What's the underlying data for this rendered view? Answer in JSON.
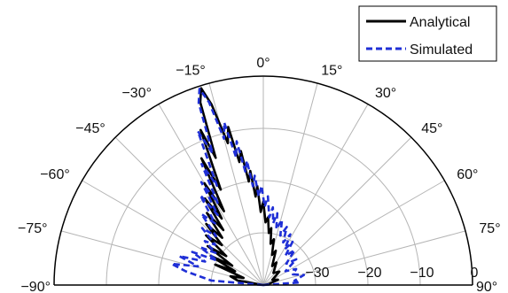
{
  "chart_data": {
    "type": "polar-line",
    "title": "",
    "angle_unit": "degrees",
    "angle_range": [
      -90,
      90
    ],
    "angle_ticks": [
      -90,
      -75,
      -60,
      -45,
      -30,
      -15,
      0,
      15,
      30,
      45,
      60,
      75,
      90
    ],
    "angle_tick_labels": [
      "−90°",
      "−75°",
      "−60°",
      "−45°",
      "−30°",
      "−15°",
      "0°",
      "15°",
      "30°",
      "45°",
      "60°",
      "75°",
      "90°"
    ],
    "r_unit": "dB",
    "r_range": [
      -40,
      0
    ],
    "r_ticks": [
      -30,
      -20,
      -10,
      0
    ],
    "r_tick_labels": [
      "−30",
      "−20",
      "−10",
      "0"
    ],
    "grid": true,
    "legend_position": "top-right",
    "series": [
      {
        "name": "Analytical",
        "color": "#000000",
        "line_style": "solid",
        "points": [
          [
            -90,
            -40
          ],
          [
            -80,
            -35
          ],
          [
            -75,
            -33.5
          ],
          [
            -70,
            -36
          ],
          [
            -67,
            -30
          ],
          [
            -64,
            -34
          ],
          [
            -61,
            -28.5
          ],
          [
            -58,
            -33
          ],
          [
            -55,
            -27
          ],
          [
            -52,
            -31
          ],
          [
            -49,
            -25.5
          ],
          [
            -46,
            -29
          ],
          [
            -43,
            -24
          ],
          [
            -41,
            -28
          ],
          [
            -38,
            -22.5
          ],
          [
            -36,
            -27
          ],
          [
            -34,
            -20
          ],
          [
            -32,
            -25
          ],
          [
            -30,
            -17.5
          ],
          [
            -28,
            -24
          ],
          [
            -26,
            -13
          ],
          [
            -24,
            -20
          ],
          [
            -22,
            -8
          ],
          [
            -20.5,
            -14
          ],
          [
            -19,
            -3
          ],
          [
            -17.5,
            -0.5
          ],
          [
            -16,
            -4
          ],
          [
            -14,
            -12
          ],
          [
            -12.5,
            -9
          ],
          [
            -11,
            -16
          ],
          [
            -9.5,
            -14
          ],
          [
            -8,
            -20
          ],
          [
            -6.5,
            -18
          ],
          [
            -5,
            -23
          ],
          [
            -3.5,
            -21
          ],
          [
            -2,
            -26
          ],
          [
            0,
            -24
          ],
          [
            2,
            -28
          ],
          [
            4,
            -27
          ],
          [
            6,
            -30
          ],
          [
            8,
            -29
          ],
          [
            10,
            -32
          ],
          [
            13,
            -31
          ],
          [
            16,
            -34
          ],
          [
            20,
            -33
          ],
          [
            25,
            -36
          ],
          [
            30,
            -35
          ],
          [
            40,
            -37
          ],
          [
            50,
            -36
          ],
          [
            60,
            -38
          ],
          [
            70,
            -37
          ],
          [
            80,
            -39
          ],
          [
            90,
            -40
          ]
        ]
      },
      {
        "name": "Simulated",
        "color": "#1f2fd6",
        "line_style": "dashed",
        "points": [
          [
            -90,
            -40
          ],
          [
            -85,
            -30
          ],
          [
            -80,
            -25
          ],
          [
            -77,
            -22
          ],
          [
            -74,
            -27
          ],
          [
            -71,
            -23
          ],
          [
            -68,
            -28
          ],
          [
            -65,
            -25
          ],
          [
            -62,
            -30
          ],
          [
            -59,
            -26
          ],
          [
            -56,
            -29
          ],
          [
            -53,
            -26
          ],
          [
            -50,
            -28
          ],
          [
            -47,
            -24
          ],
          [
            -44,
            -27
          ],
          [
            -41,
            -22
          ],
          [
            -38,
            -25
          ],
          [
            -35,
            -19
          ],
          [
            -33,
            -24
          ],
          [
            -31,
            -17
          ],
          [
            -29,
            -22
          ],
          [
            -27,
            -14
          ],
          [
            -25,
            -19
          ],
          [
            -23,
            -8
          ],
          [
            -21,
            -13
          ],
          [
            -19.5,
            -3
          ],
          [
            -18,
            -0.5
          ],
          [
            -16.5,
            -3.5
          ],
          [
            -15,
            -11
          ],
          [
            -13.5,
            -8
          ],
          [
            -12,
            -15
          ],
          [
            -10.5,
            -12
          ],
          [
            -9,
            -18
          ],
          [
            -7.5,
            -16
          ],
          [
            -6,
            -21
          ],
          [
            -4.5,
            -19
          ],
          [
            -3,
            -23
          ],
          [
            -1,
            -21
          ],
          [
            1,
            -25
          ],
          [
            3,
            -23
          ],
          [
            5,
            -27
          ],
          [
            7,
            -25
          ],
          [
            9,
            -28
          ],
          [
            11,
            -26
          ],
          [
            13,
            -29
          ],
          [
            16,
            -27
          ],
          [
            19,
            -30
          ],
          [
            22,
            -28
          ],
          [
            25,
            -31
          ],
          [
            28,
            -29
          ],
          [
            31,
            -32
          ],
          [
            34,
            -30
          ],
          [
            37,
            -33
          ],
          [
            42,
            -31
          ],
          [
            47,
            -34
          ],
          [
            52,
            -32
          ],
          [
            58,
            -35
          ],
          [
            64,
            -33
          ],
          [
            70,
            -34
          ],
          [
            76,
            -32
          ],
          [
            82,
            -34
          ],
          [
            86,
            -33
          ],
          [
            90,
            -40
          ]
        ]
      }
    ]
  }
}
